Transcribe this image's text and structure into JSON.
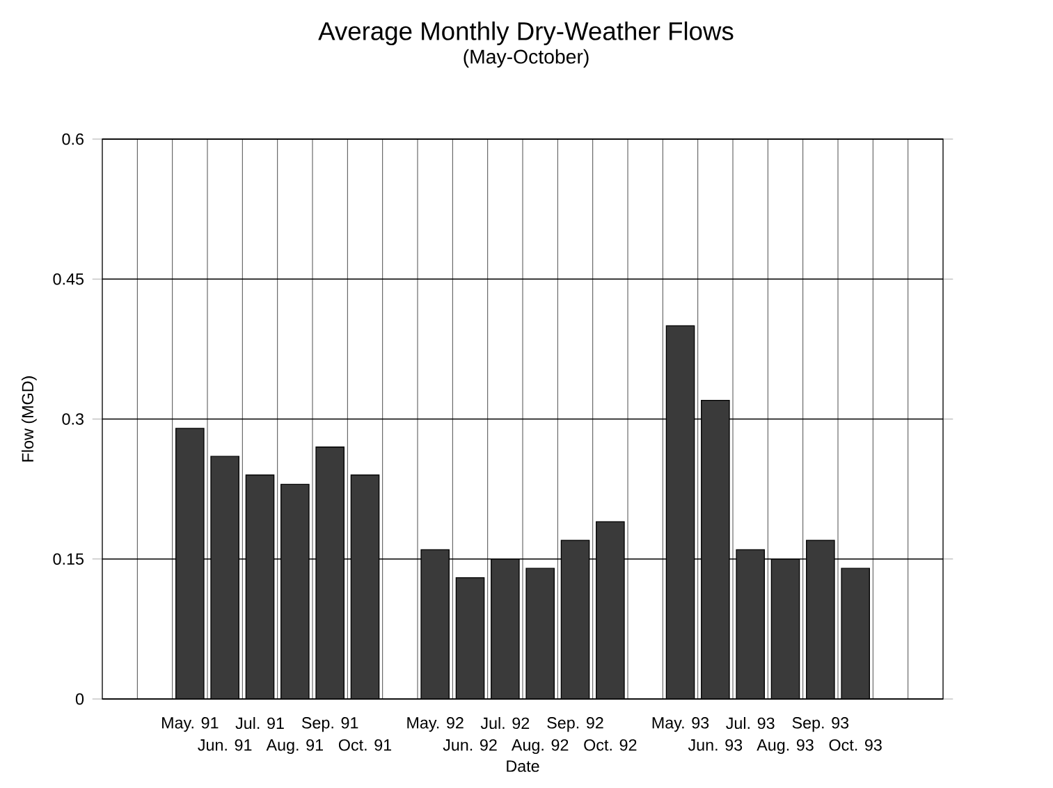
{
  "chart_data": {
    "type": "bar",
    "title": "Average Monthly Dry-Weather Flows",
    "subtitle": "(May-October)",
    "xlabel": "Date",
    "ylabel": "Flow (MGD)",
    "categories": [
      null,
      null,
      "May. 91",
      "Jun. 91",
      "Jul. 91",
      "Aug. 91",
      "Sep. 91",
      "Oct. 91",
      null,
      "May. 92",
      "Jun. 92",
      "Jul. 92",
      "Aug. 92",
      "Sep. 92",
      "Oct. 92",
      null,
      "May. 93",
      "Jun. 93",
      "Jul. 93",
      "Aug. 93",
      "Sep. 93",
      "Oct. 93",
      null,
      null
    ],
    "values": [
      null,
      null,
      0.29,
      0.26,
      0.24,
      0.23,
      0.27,
      0.24,
      null,
      0.16,
      0.13,
      0.15,
      0.14,
      0.17,
      0.19,
      null,
      0.4,
      0.32,
      0.16,
      0.15,
      0.17,
      0.14,
      null,
      null
    ],
    "color": "#3a3a3a",
    "ylim": [
      0,
      0.6
    ],
    "yticks": [
      0,
      0.15,
      0.3,
      0.45,
      0.6
    ],
    "grid": true
  }
}
